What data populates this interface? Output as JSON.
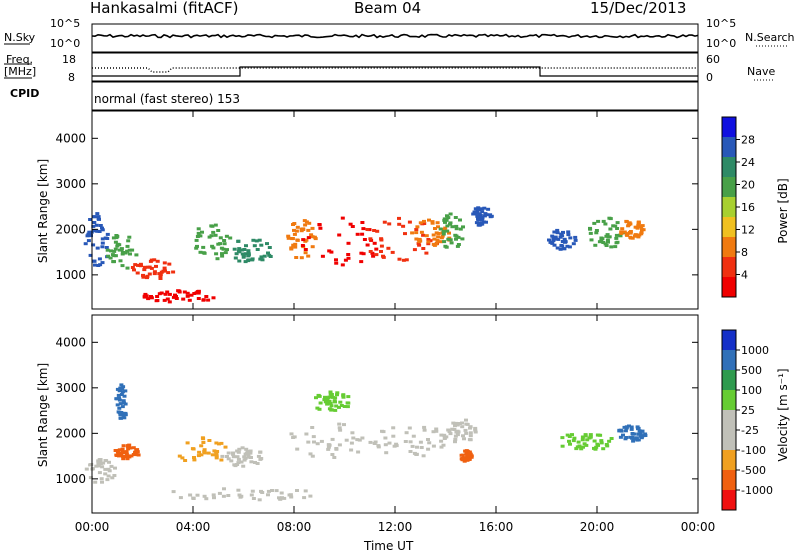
{
  "header": {
    "station": "Hankasalmi (fitACF)",
    "beam": "Beam 04",
    "date": "15/Dec/2013"
  },
  "noise_panel": {
    "left_label": "N.Sky",
    "right_label": "N.Search",
    "left_ticks": [
      "10^5",
      "10^0"
    ],
    "right_ticks": [
      "10^5",
      "10^0"
    ]
  },
  "freq_panel": {
    "left_label_line1": "Freq.",
    "left_label_line2": "[MHz]",
    "right_label": "Nave",
    "left_ticks": [
      "18",
      "8"
    ],
    "right_ticks": [
      "60",
      "0"
    ]
  },
  "cpid_panel": {
    "label": "CPID",
    "mode": "normal (fast stereo) 153"
  },
  "colors": {
    "power_scale": [
      "#1010e0",
      "#2858b8",
      "#2e8a66",
      "#48a048",
      "#a8d030",
      "#f0c020",
      "#f07a10",
      "#f03010",
      "#f00000"
    ],
    "velocity_scale": [
      "#1530c8",
      "#3070b8",
      "#2e9a4e",
      "#66cc33",
      "#c0c0b8",
      "#c0c0b8",
      "#f0a020",
      "#f06010",
      "#f01010"
    ]
  },
  "chart_data": [
    {
      "type": "heatmap",
      "panel": "power",
      "ylabel": "Slant Range [km]",
      "ylim": [
        250,
        4600
      ],
      "yticks": [
        "4000",
        "3000",
        "2000",
        "1000"
      ],
      "colorbar_label": "Power [dB]",
      "colorbar_ticks": [
        "28",
        "24",
        "20",
        "16",
        "12",
        "8",
        "4"
      ],
      "colorbar_range": [
        0,
        32
      ]
    },
    {
      "type": "heatmap",
      "panel": "velocity",
      "ylabel": "Slant Range [km]",
      "ylim": [
        250,
        4600
      ],
      "yticks": [
        "4000",
        "3000",
        "2000",
        "1000"
      ],
      "colorbar_label": "Velocity [m s⁻¹]",
      "colorbar_ticks": [
        "1000",
        "500",
        "100",
        "25",
        "-25",
        "-100",
        "-500",
        "-1000"
      ]
    }
  ],
  "xaxis": {
    "label": "Time UT",
    "ticks": [
      "00:00",
      "04:00",
      "08:00",
      "12:00",
      "16:00",
      "20:00",
      "00:00"
    ],
    "range_hours": [
      0,
      24
    ]
  }
}
